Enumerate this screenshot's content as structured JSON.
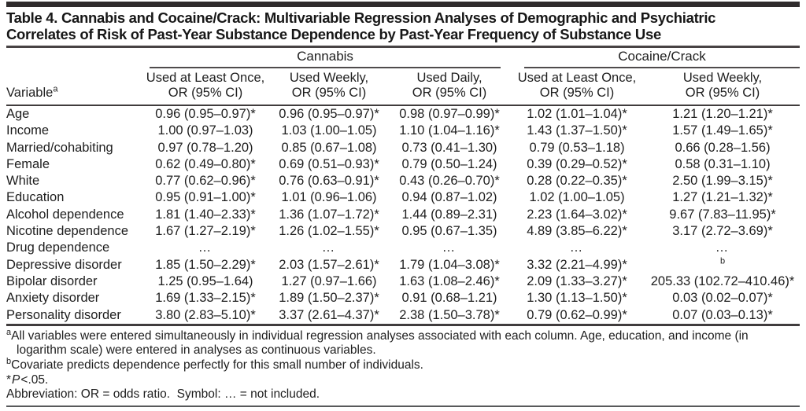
{
  "title": {
    "line1": "Table 4. Cannabis and Cocaine/Crack: Multivariable Regression Analyses of Demographic and Psychiatric",
    "line2": "Correlates of Risk of Past-Year Substance Dependence by Past-Year Frequency of Substance Use"
  },
  "table": {
    "variable_header": {
      "label": "Variable",
      "sup": "a"
    },
    "groups": [
      {
        "label": "Cannabis",
        "span": 3
      },
      {
        "label": "Cocaine/Crack",
        "span": 2
      }
    ],
    "columns": [
      {
        "line1": "Used at Least Once,",
        "line2": "OR (95% CI)"
      },
      {
        "line1": "Used Weekly,",
        "line2": "OR (95% CI)"
      },
      {
        "line1": "Used Daily,",
        "line2": "OR (95% CI)"
      },
      {
        "line1": "Used at Least Once,",
        "line2": "OR (95% CI)"
      },
      {
        "line1": "Used Weekly,",
        "line2": "OR (95% CI)"
      }
    ],
    "rows": [
      {
        "variable": "Age",
        "cells": [
          "0.96 (0.95–0.97)*",
          "0.96 (0.95–0.97)*",
          "0.98 (0.97–0.99)*",
          "1.02 (1.01–1.04)*",
          "1.21 (1.20–1.21)*"
        ]
      },
      {
        "variable": "Income",
        "cells": [
          "1.00 (0.97–1.03)",
          "1.03 (1.00–1.05)",
          "1.10 (1.04–1.16)*",
          "1.43 (1.37–1.50)*",
          "1.57 (1.49–1.65)*"
        ]
      },
      {
        "variable": "Married/cohabiting",
        "cells": [
          "0.97 (0.78–1.20)",
          "0.85 (0.67–1.08)",
          "0.73 (0.41–1.30)",
          "0.79 (0.53–1.18)",
          "0.66 (0.28–1.56)"
        ]
      },
      {
        "variable": "Female",
        "cells": [
          "0.62 (0.49–0.80)*",
          "0.69 (0.51–0.93)*",
          "0.79 (0.50–1.24)",
          "0.39 (0.29–0.52)*",
          "0.58 (0.31–1.10)"
        ]
      },
      {
        "variable": "White",
        "cells": [
          "0.77 (0.62–0.96)*",
          "0.76 (0.63–0.91)*",
          "0.43 (0.26–0.70)*",
          "0.28 (0.22–0.35)*",
          "2.50 (1.99–3.15)*"
        ]
      },
      {
        "variable": "Education",
        "cells": [
          "0.95 (0.91–1.00)*",
          "1.01 (0.96–1.06)",
          "0.94 (0.87–1.02)",
          "1.02 (1.00–1.05)",
          "1.27 (1.21–1.32)*"
        ]
      },
      {
        "variable": "Alcohol dependence",
        "cells": [
          "1.81 (1.40–2.33)*",
          "1.36 (1.07–1.72)*",
          "1.44 (0.89–2.31)",
          "2.23 (1.64–3.02)*",
          "9.67 (7.83–11.95)*"
        ]
      },
      {
        "variable": "Nicotine dependence",
        "cells": [
          "1.67 (1.27–2.19)*",
          "1.26 (1.02–1.55)*",
          "0.95 (0.67–1.35)",
          "4.89 (3.85–6.22)*",
          "3.17 (2.72–3.69)*"
        ]
      },
      {
        "variable": "Drug dependence",
        "cells": [
          "…",
          "…",
          "…",
          "…",
          "…"
        ]
      },
      {
        "variable": "Depressive disorder",
        "cells": [
          "1.85 (1.50–2.29)*",
          "2.03 (1.57–2.61)*",
          "1.79 (1.04–3.08)*",
          "3.32 (2.21–4.99)*",
          "^b"
        ]
      },
      {
        "variable": "Bipolar disorder",
        "cells": [
          "1.25 (0.95–1.64)",
          "1.27 (0.97–1.66)",
          "1.63 (1.08–2.46)*",
          "2.09 (1.33–3.27)*",
          "205.33 (102.72–410.46)*"
        ]
      },
      {
        "variable": "Anxiety disorder",
        "cells": [
          "1.69 (1.33–2.15)*",
          "1.89 (1.50–2.37)*",
          "0.91 (0.68–1.21)",
          "1.30 (1.13–1.50)*",
          "0.03 (0.02–0.07)*"
        ]
      },
      {
        "variable": "Personality disorder",
        "cells": [
          "3.80 (2.83–5.10)*",
          "3.37 (2.61–4.37)*",
          "2.38 (1.50–3.78)*",
          "0.79 (0.62–0.99)*",
          "0.07 (0.03–0.13)*"
        ]
      }
    ]
  },
  "footnotes": {
    "a": {
      "sup": "a",
      "text": "All variables were entered simultaneously in individual regression analyses associated with each column. Age, education, and income (in logarithm scale) were entered in analyses as continuous variables."
    },
    "b": {
      "sup": "b",
      "text": "Covariate predicts dependence perfectly for this small number of individuals."
    },
    "p": {
      "star": "*",
      "p": "P",
      "rest": "<.05."
    },
    "abbr": "Abbreviation: OR = odds ratio.  Symbol: … = not included."
  }
}
